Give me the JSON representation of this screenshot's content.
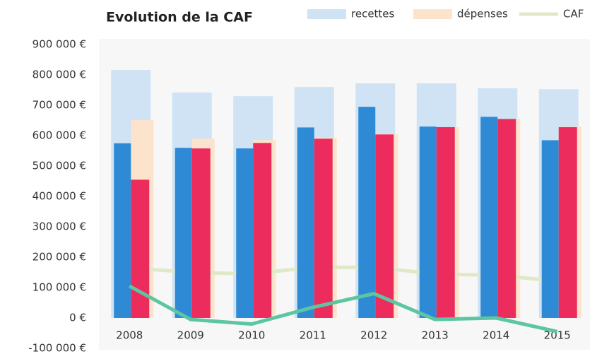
{
  "chart_data": {
    "type": "bar",
    "title": "Evolution de la CAF",
    "categories": [
      "2008",
      "2009",
      "2010",
      "2011",
      "2012",
      "2013",
      "2014",
      "2015"
    ],
    "series": [
      {
        "name": "recettes",
        "color": "#cfe3f5",
        "values": [
          816000,
          742000,
          730000,
          760000,
          772000,
          772000,
          756000,
          753000
        ]
      },
      {
        "name": "dépenses",
        "color": "#fbe3cc",
        "values": [
          651000,
          590000,
          586000,
          593000,
          605000,
          628000,
          655000,
          630000
        ]
      },
      {
        "name": "CAF",
        "color": "#dfe9c8",
        "kind": "line",
        "values": [
          165000,
          150000,
          145000,
          167000,
          167000,
          145000,
          140000,
          122000
        ]
      },
      {
        "color": "#2f8ad6",
        "values": [
          575000,
          560000,
          558000,
          627000,
          695000,
          630000,
          662000,
          585000
        ]
      },
      {
        "color": "#ec2c5d",
        "values": [
          455000,
          558000,
          576000,
          590000,
          604000,
          628000,
          655000,
          628000
        ]
      },
      {
        "color": "#5cc6a0",
        "kind": "line",
        "values": [
          105000,
          -5000,
          -20000,
          35000,
          80000,
          -5000,
          0,
          -45000
        ]
      }
    ],
    "ylim": [
      -100000,
      900000
    ],
    "yticks": [
      {
        "value": -100000,
        "label": "-100 000 €"
      },
      {
        "value": 0,
        "label": "0 €"
      },
      {
        "value": 100000,
        "label": "100 000 €"
      },
      {
        "value": 200000,
        "label": "200 000 €"
      },
      {
        "value": 300000,
        "label": "300 000 €"
      },
      {
        "value": 400000,
        "label": "400 000 €"
      },
      {
        "value": 500000,
        "label": "500 000 €"
      },
      {
        "value": 600000,
        "label": "600 000 €"
      },
      {
        "value": 700000,
        "label": "700 000 €"
      },
      {
        "value": 800000,
        "label": "800 000 €"
      },
      {
        "value": 900000,
        "label": "900 000 €"
      }
    ],
    "legend": "top-right"
  }
}
